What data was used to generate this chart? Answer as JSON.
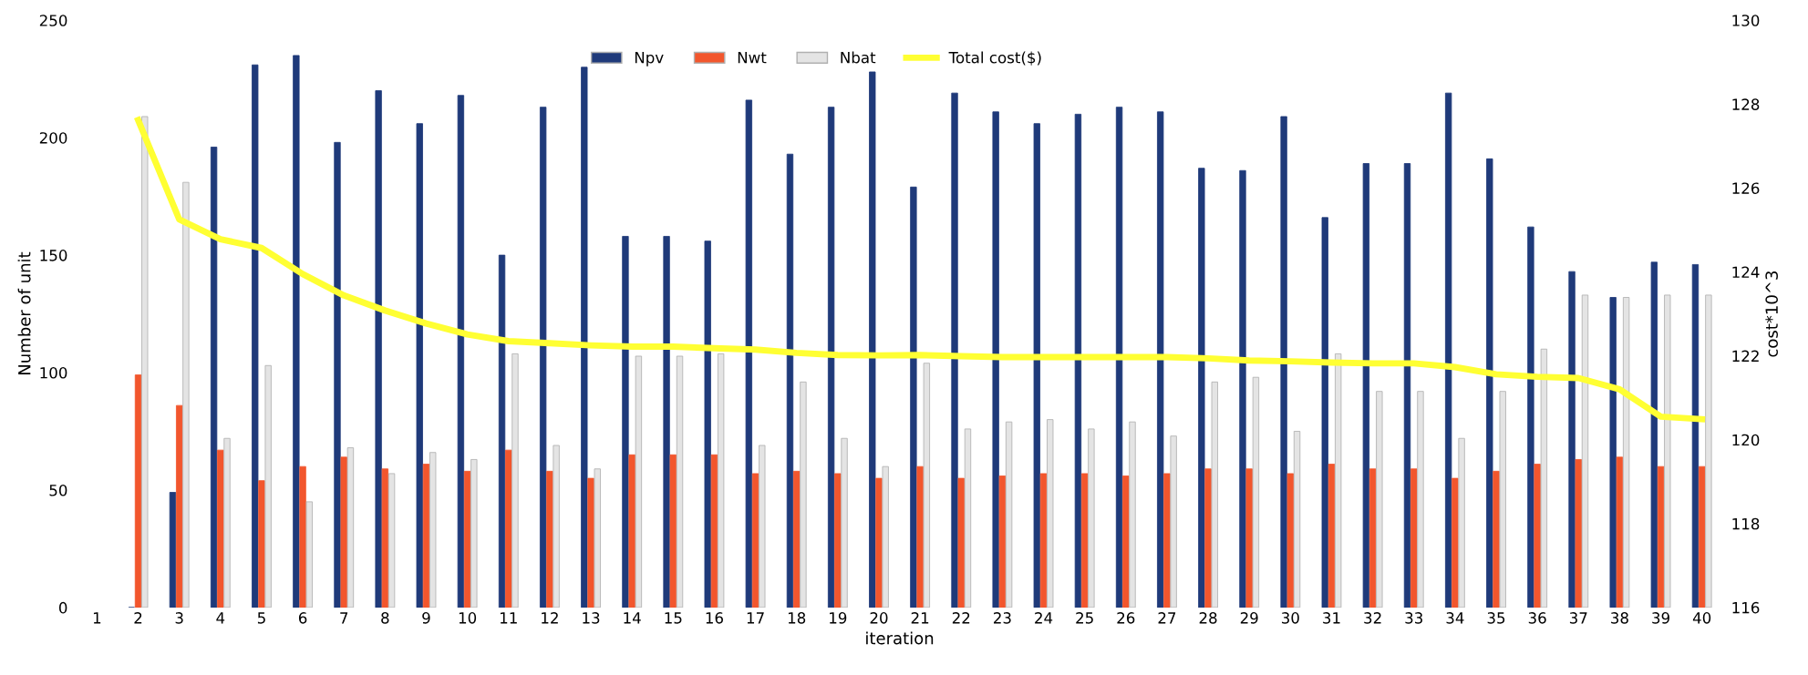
{
  "chart_data": {
    "type": "bar",
    "xlabel": "iteration",
    "ylabel": "Number of unit",
    "y2label": "cost*10^3",
    "categories": [
      "1",
      "2",
      "3",
      "4",
      "5",
      "6",
      "7",
      "8",
      "9",
      "10",
      "11",
      "12",
      "13",
      "14",
      "15",
      "16",
      "17",
      "18",
      "19",
      "20",
      "21",
      "22",
      "23",
      "24",
      "25",
      "26",
      "27",
      "28",
      "29",
      "30",
      "31",
      "32",
      "33",
      "34",
      "35",
      "36",
      "37",
      "38",
      "39",
      "40"
    ],
    "series": [
      {
        "name": "Npv",
        "color": "#1f3a7a",
        "values": [
          null,
          0,
          49,
          196,
          231,
          235,
          198,
          220,
          206,
          218,
          150,
          213,
          230,
          158,
          158,
          156,
          216,
          193,
          213,
          228,
          179,
          219,
          211,
          206,
          210,
          213,
          211,
          187,
          186,
          209,
          166,
          189,
          189,
          219,
          191,
          162,
          143,
          132,
          147,
          146
        ]
      },
      {
        "name": "Nwt",
        "color": "#f2562d",
        "values": [
          null,
          99,
          86,
          67,
          54,
          60,
          64,
          59,
          61,
          58,
          67,
          58,
          55,
          65,
          65,
          65,
          57,
          58,
          57,
          55,
          60,
          55,
          56,
          57,
          57,
          56,
          57,
          59,
          59,
          57,
          61,
          59,
          59,
          55,
          58,
          61,
          63,
          64,
          60,
          60
        ]
      },
      {
        "name": "Nbat",
        "color": "#e4e4e4",
        "values": [
          null,
          209,
          181,
          72,
          103,
          45,
          68,
          57,
          66,
          63,
          108,
          69,
          59,
          107,
          107,
          108,
          69,
          96,
          72,
          60,
          104,
          76,
          79,
          80,
          76,
          79,
          73,
          96,
          98,
          75,
          108,
          92,
          92,
          72,
          92,
          110,
          133,
          132,
          133,
          133
        ]
      },
      {
        "name": "Total cost($)",
        "color": "#ffff33",
        "type": "line",
        "axis": "y2",
        "values": [
          null,
          127.62,
          125.25,
          124.78,
          124.57,
          123.95,
          123.44,
          123.08,
          122.77,
          122.51,
          122.35,
          122.3,
          122.25,
          122.22,
          122.22,
          122.18,
          122.15,
          122.07,
          122.02,
          122.01,
          122.02,
          121.99,
          121.97,
          121.97,
          121.97,
          121.97,
          121.97,
          121.94,
          121.89,
          121.87,
          121.84,
          121.82,
          121.82,
          121.73,
          121.56,
          121.5,
          121.47,
          121.2,
          120.55,
          120.49
        ]
      }
    ],
    "ylim": [
      0,
      250
    ],
    "yticks": [
      0,
      50,
      100,
      150,
      200,
      250
    ],
    "y2lim": [
      116,
      130
    ],
    "y2ticks": [
      116,
      118,
      120,
      122,
      124,
      126,
      128,
      130
    ],
    "grid": false,
    "legend": "top",
    "marker": "none",
    "line_style": "solid"
  }
}
